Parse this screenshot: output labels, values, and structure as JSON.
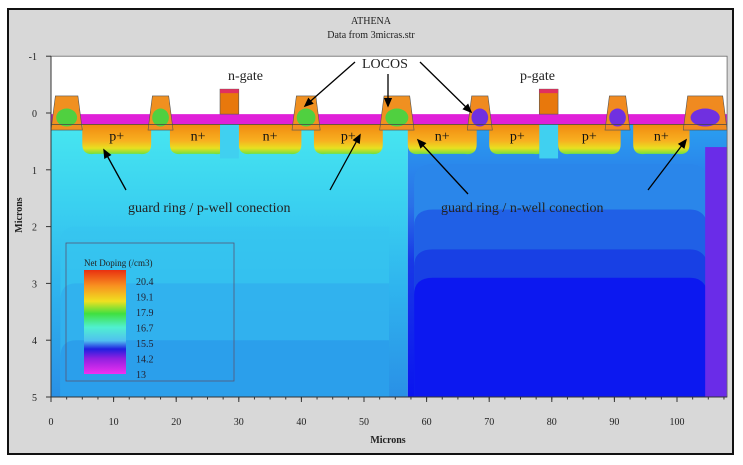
{
  "chart_data": {
    "type": "heatmap",
    "title": "ATHENA",
    "subtitle": "Data from 3micras.str",
    "xlabel": "Microns",
    "ylabel": "Microns",
    "xlim": [
      0,
      108
    ],
    "ylim": [
      5,
      -1
    ],
    "x_ticks": [
      "0",
      "10",
      "20",
      "30",
      "40",
      "50",
      "60",
      "70",
      "80",
      "90",
      "100"
    ],
    "y_ticks": [
      "-1",
      "0",
      "1",
      "2",
      "3",
      "4",
      "5"
    ],
    "legend": {
      "title": "Net Doping (/cm3)",
      "levels": [
        "20.4",
        "19.1",
        "17.9",
        "16.7",
        "15.5",
        "14.2",
        "13"
      ],
      "placement": "bottom-left"
    },
    "annotations": {
      "n_gate": "n-gate",
      "p_gate": "p-gate",
      "locos": "LOCOS",
      "guard_p": "guard ring / p-well conection",
      "guard_n": "guard ring / n-well conection",
      "regions": [
        "p+",
        "n+",
        "n+",
        "p+",
        "n+",
        "p+",
        "p+",
        "n+"
      ]
    },
    "colors": {
      "p_well": "#3fd6ee",
      "n_well": "#1030e8",
      "implant": "#f7a41c",
      "oxide": "#e020d8",
      "gate": "#e8780c"
    }
  }
}
